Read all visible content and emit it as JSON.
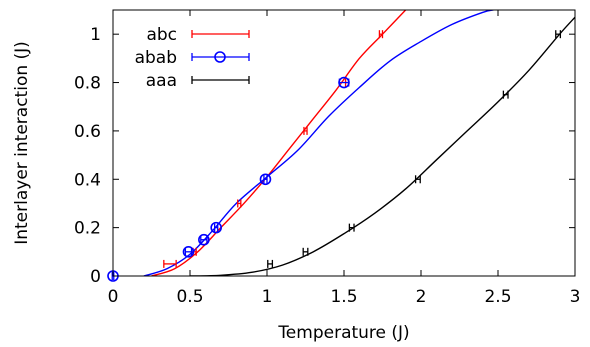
{
  "chart_data": {
    "type": "line",
    "title": "",
    "xlabel": "Temperature (J)",
    "ylabel": "Interlayer interaction (J)",
    "xlim": [
      0,
      3
    ],
    "ylim": [
      0,
      1.1
    ],
    "xticks": [
      0,
      0.5,
      1,
      1.5,
      2,
      2.5,
      3
    ],
    "xtick_labels": [
      "0",
      "0.5",
      "1",
      "1.5",
      "2",
      "2.5",
      "3"
    ],
    "yticks": [
      0,
      0.2,
      0.4,
      0.6,
      0.8,
      1
    ],
    "ytick_labels": [
      "0",
      "0.2",
      "0.4",
      "0.6",
      "0.8",
      "1"
    ],
    "grid": false,
    "legend_position": "top-left",
    "series": [
      {
        "name": "abc",
        "color": "#ff0000",
        "marker": "xerror",
        "points": [
          {
            "x": 0.37,
            "y": 0.05,
            "xerr": 0.04
          },
          {
            "x": 0.53,
            "y": 0.1,
            "xerr": 0.01
          },
          {
            "x": 0.82,
            "y": 0.3,
            "xerr": 0.01
          },
          {
            "x": 1.25,
            "y": 0.6,
            "xerr": 0.01
          },
          {
            "x": 1.52,
            "y": 0.8,
            "xerr": 0.01
          },
          {
            "x": 1.74,
            "y": 1.0,
            "xerr": 0.01
          }
        ],
        "curve": [
          [
            0.25,
            0.0
          ],
          [
            0.4,
            0.03
          ],
          [
            0.55,
            0.1
          ],
          [
            0.7,
            0.2
          ],
          [
            0.85,
            0.3
          ],
          [
            1.0,
            0.41
          ],
          [
            1.15,
            0.53
          ],
          [
            1.3,
            0.65
          ],
          [
            1.45,
            0.77
          ],
          [
            1.6,
            0.9
          ],
          [
            1.75,
            1.0
          ],
          [
            1.9,
            1.1
          ]
        ]
      },
      {
        "name": "abab",
        "color": "#0000ff",
        "marker": "circle",
        "points": [
          {
            "x": 0.0,
            "y": 0.0,
            "xerr": 0.005
          },
          {
            "x": 0.49,
            "y": 0.1,
            "xerr": 0.02
          },
          {
            "x": 0.59,
            "y": 0.15,
            "xerr": 0.02
          },
          {
            "x": 0.67,
            "y": 0.2,
            "xerr": 0.01
          },
          {
            "x": 0.99,
            "y": 0.4,
            "xerr": 0.01
          },
          {
            "x": 1.5,
            "y": 0.8,
            "xerr": 0.03
          }
        ],
        "curve": [
          [
            0.2,
            0.0
          ],
          [
            0.35,
            0.03
          ],
          [
            0.5,
            0.09
          ],
          [
            0.65,
            0.19
          ],
          [
            0.8,
            0.3
          ],
          [
            1.0,
            0.41
          ],
          [
            1.2,
            0.52
          ],
          [
            1.4,
            0.66
          ],
          [
            1.6,
            0.78
          ],
          [
            1.8,
            0.89
          ],
          [
            2.0,
            0.97
          ],
          [
            2.2,
            1.04
          ],
          [
            2.4,
            1.09
          ],
          [
            2.47,
            1.1
          ]
        ]
      },
      {
        "name": "aaa",
        "color": "#000000",
        "marker": "xerror",
        "points": [
          {
            "x": 1.02,
            "y": 0.05,
            "xerr": 0.015
          },
          {
            "x": 1.25,
            "y": 0.1,
            "xerr": 0.015
          },
          {
            "x": 1.55,
            "y": 0.2,
            "xerr": 0.015
          },
          {
            "x": 1.98,
            "y": 0.4,
            "xerr": 0.015
          },
          {
            "x": 2.55,
            "y": 0.75,
            "xerr": 0.015
          },
          {
            "x": 2.89,
            "y": 1.0,
            "xerr": 0.015
          }
        ],
        "curve": [
          [
            0.5,
            0.0
          ],
          [
            0.7,
            0.003
          ],
          [
            0.9,
            0.015
          ],
          [
            1.1,
            0.045
          ],
          [
            1.3,
            0.1
          ],
          [
            1.5,
            0.175
          ],
          [
            1.7,
            0.26
          ],
          [
            1.9,
            0.36
          ],
          [
            2.1,
            0.48
          ],
          [
            2.3,
            0.6
          ],
          [
            2.5,
            0.72
          ],
          [
            2.7,
            0.85
          ],
          [
            2.9,
            1.0
          ],
          [
            3.0,
            1.07
          ]
        ]
      }
    ]
  }
}
